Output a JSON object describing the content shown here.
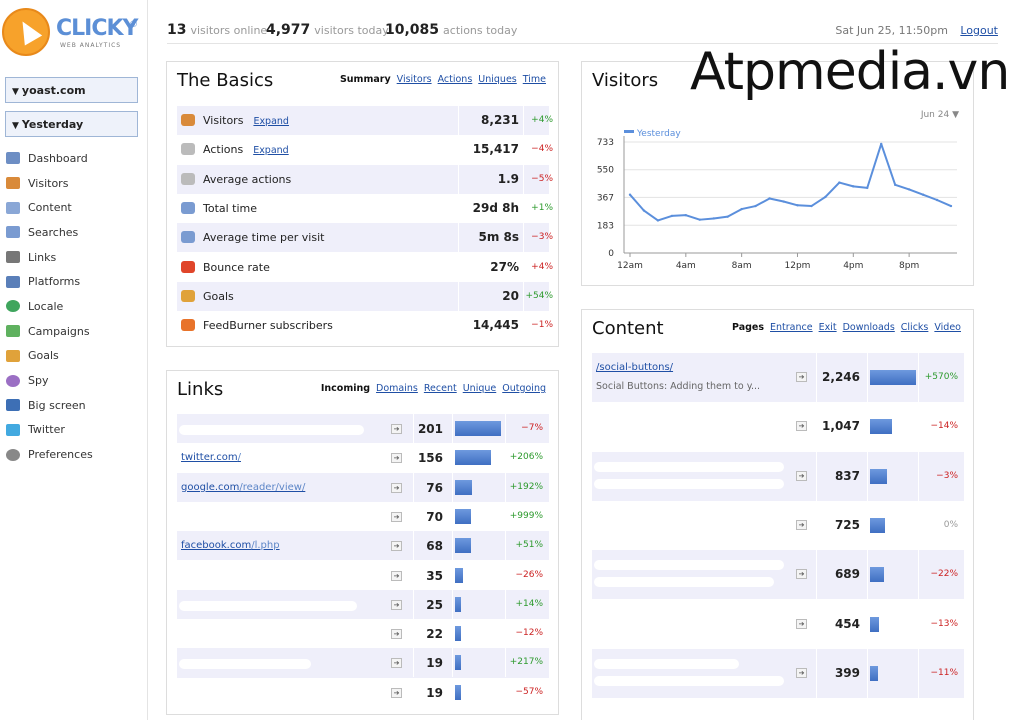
{
  "logo": {
    "text": "CLICKY",
    "subtitle": "WEB ANALYTICS",
    "reg": "®"
  },
  "sidebar": {
    "site": "yoast.com",
    "range": "Yesterday",
    "items": [
      {
        "label": "Dashboard",
        "icon": "dashboard-icon",
        "color": "#6d8ec4"
      },
      {
        "label": "Visitors",
        "icon": "visitors-icon",
        "color": "#d98a3a"
      },
      {
        "label": "Content",
        "icon": "content-icon",
        "color": "#8aa7d6"
      },
      {
        "label": "Searches",
        "icon": "magnifier-icon",
        "color": "#7a9bd1"
      },
      {
        "label": "Links",
        "icon": "chain-link-icon",
        "color": "#777777"
      },
      {
        "label": "Platforms",
        "icon": "monitor-icon",
        "color": "#5a7fb9"
      },
      {
        "label": "Locale",
        "icon": "globe-icon",
        "color": "#3fa55d"
      },
      {
        "label": "Campaigns",
        "icon": "tag-icon",
        "color": "#5fb15f"
      },
      {
        "label": "Goals",
        "icon": "flag-icon",
        "color": "#e0a23a"
      },
      {
        "label": "Spy",
        "icon": "eye-icon",
        "color": "#9b6fc4"
      },
      {
        "label": "Big screen",
        "icon": "tv-icon",
        "color": "#3d6fb5"
      },
      {
        "label": "Twitter",
        "icon": "twitter-icon",
        "color": "#42a9e0"
      },
      {
        "label": "Preferences",
        "icon": "gear-icon",
        "color": "#888888"
      }
    ]
  },
  "topbar": {
    "online_count": "13",
    "online_label": "visitors online",
    "today_count": "4,977",
    "today_label": "visitors today",
    "actions_count": "10,085",
    "actions_label": "actions today",
    "datetime": "Sat Jun 25, 11:50pm",
    "logout": "Logout"
  },
  "watermark": "Atpmedia.vn",
  "basics": {
    "title": "The Basics",
    "tabs": [
      "Summary",
      "Visitors",
      "Actions",
      "Uniques",
      "Time"
    ],
    "rows": [
      {
        "label": "Visitors",
        "expand": "Expand",
        "value": "8,231",
        "change": "+4%",
        "dir": "pos",
        "icon": "visitors-icon",
        "color": "#d98a3a"
      },
      {
        "label": "Actions",
        "expand": "Expand",
        "value": "15,417",
        "change": "−4%",
        "dir": "neg",
        "icon": "pointer-icon",
        "color": "#bbbbbb"
      },
      {
        "label": "Average actions",
        "expand": "",
        "value": "1.9",
        "change": "−5%",
        "dir": "neg",
        "icon": "pointer-icon",
        "color": "#bbbbbb"
      },
      {
        "label": "Total time",
        "expand": "",
        "value": "29d 8h",
        "change": "+1%",
        "dir": "pos",
        "icon": "clock-icon",
        "color": "#7a9bd1"
      },
      {
        "label": "Average time per visit",
        "expand": "",
        "value": "5m 8s",
        "change": "−3%",
        "dir": "neg",
        "icon": "clock-icon",
        "color": "#7a9bd1"
      },
      {
        "label": "Bounce rate",
        "expand": "",
        "value": "27%",
        "change": "+4%",
        "dir": "neg",
        "icon": "bounce-icon",
        "color": "#e0452a"
      },
      {
        "label": "Goals",
        "expand": "",
        "value": "20",
        "change": "+54%",
        "dir": "pos",
        "icon": "flag-icon",
        "color": "#e0a23a"
      },
      {
        "label": "FeedBurner subscribers",
        "expand": "",
        "value": "14,445",
        "change": "−1%",
        "dir": "neg",
        "icon": "feedburner-icon",
        "color": "#e8732a"
      }
    ]
  },
  "visitors_chart": {
    "title": "Visitors",
    "date_selector": "Jun 24 ▼",
    "chart_data": {
      "type": "line",
      "title": "Visitors",
      "series": [
        {
          "name": "Yesterday",
          "color": "#5b8fdc",
          "values": [
            385,
            280,
            215,
            245,
            250,
            220,
            228,
            240,
            290,
            310,
            360,
            340,
            315,
            310,
            370,
            465,
            440,
            430,
            720,
            450,
            420,
            385,
            350,
            310
          ]
        }
      ],
      "x": [
        0,
        1,
        2,
        3,
        4,
        5,
        6,
        7,
        8,
        9,
        10,
        11,
        12,
        13,
        14,
        15,
        16,
        17,
        18,
        19,
        20,
        21,
        22,
        23
      ],
      "x_ticks": [
        {
          "at": 0,
          "label": "12am"
        },
        {
          "at": 4,
          "label": "4am"
        },
        {
          "at": 8,
          "label": "8am"
        },
        {
          "at": 12,
          "label": "12pm"
        },
        {
          "at": 16,
          "label": "4pm"
        },
        {
          "at": 20,
          "label": "8pm"
        }
      ],
      "y_ticks": [
        0,
        183,
        367,
        550,
        733
      ],
      "ylim": [
        0,
        733
      ],
      "xlim": [
        0,
        23
      ],
      "grid": true,
      "legend": "top-left"
    }
  },
  "links": {
    "title": "Links",
    "tabs": [
      "Incoming",
      "Domains",
      "Recent",
      "Unique",
      "Outgoing"
    ],
    "rows": [
      {
        "domain": "",
        "path": "",
        "value": "201",
        "share": 1.0,
        "change": "−7%",
        "dir": "neg",
        "blur": 185
      },
      {
        "domain": "twitter.com",
        "path": "/",
        "value": "156",
        "share": 0.78,
        "change": "+206%",
        "dir": "pos",
        "blur": 0
      },
      {
        "domain": "google.com",
        "path": "/reader/view/",
        "value": "76",
        "share": 0.38,
        "change": "+192%",
        "dir": "pos",
        "blur": 0
      },
      {
        "domain": "",
        "path": "",
        "value": "70",
        "share": 0.35,
        "change": "+999%",
        "dir": "pos",
        "blur": 0
      },
      {
        "domain": "facebook.com",
        "path": "/l.php",
        "value": "68",
        "share": 0.34,
        "change": "+51%",
        "dir": "pos",
        "blur": 0
      },
      {
        "domain": "",
        "path": "",
        "value": "35",
        "share": 0.18,
        "change": "−26%",
        "dir": "neg",
        "blur": 0
      },
      {
        "domain": "",
        "path": "",
        "value": "25",
        "share": 0.13,
        "change": "+14%",
        "dir": "pos",
        "blur": 178
      },
      {
        "domain": "",
        "path": "",
        "value": "22",
        "share": 0.11,
        "change": "−12%",
        "dir": "neg",
        "blur": 0
      },
      {
        "domain": "",
        "path": "",
        "value": "19",
        "share": 0.1,
        "change": "+217%",
        "dir": "pos",
        "blur": 132
      },
      {
        "domain": "",
        "path": "",
        "value": "19",
        "share": 0.1,
        "change": "−57%",
        "dir": "neg",
        "blur": 0
      }
    ]
  },
  "content": {
    "title": "Content",
    "tabs": [
      "Pages",
      "Entrance",
      "Exit",
      "Downloads",
      "Clicks",
      "Video"
    ],
    "rows": [
      {
        "path": "/social-buttons/",
        "desc": "Social Buttons: Adding them to y...",
        "value": "2,246",
        "share": 1.0,
        "change": "+570%",
        "dir": "pos",
        "blur": []
      },
      {
        "path": "",
        "desc": "",
        "value": "1,047",
        "share": 0.47,
        "change": "−14%",
        "dir": "neg",
        "blur": []
      },
      {
        "path": "",
        "desc": "",
        "value": "837",
        "share": 0.37,
        "change": "−3%",
        "dir": "neg",
        "blur": [
          190,
          190
        ]
      },
      {
        "path": "",
        "desc": "",
        "value": "725",
        "share": 0.32,
        "change": "0%",
        "dir": "neu",
        "blur": []
      },
      {
        "path": "",
        "desc": "",
        "value": "689",
        "share": 0.31,
        "change": "−22%",
        "dir": "neg",
        "blur": [
          190,
          180
        ]
      },
      {
        "path": "",
        "desc": "",
        "value": "454",
        "share": 0.2,
        "change": "−13%",
        "dir": "neg",
        "blur": []
      },
      {
        "path": "",
        "desc": "",
        "value": "399",
        "share": 0.18,
        "change": "−11%",
        "dir": "neg",
        "blur": [
          145,
          190
        ]
      }
    ]
  }
}
